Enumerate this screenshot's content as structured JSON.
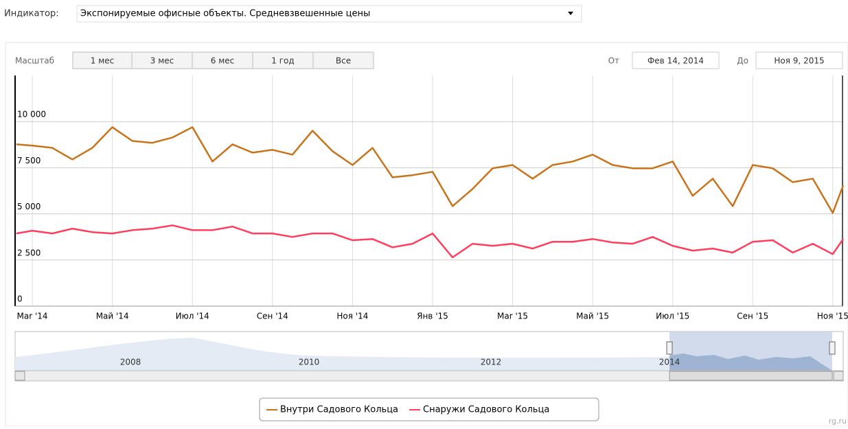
{
  "indicator": {
    "label": "Индикатор:",
    "value": "Экспонируемые офисные объекты. Средневзвешенные цены"
  },
  "range_selector": {
    "label": "Масштаб",
    "buttons": [
      "1 мес",
      "3 мес",
      "6 мес",
      "1 год",
      "Все"
    ],
    "from_label": "От",
    "from": "Фев 14, 2014",
    "to_label": "До",
    "to": "Ноя 9, 2015"
  },
  "navigator": {
    "labels": [
      "2008",
      "2010",
      "2012",
      "2014"
    ]
  },
  "watermark": "rg.ru",
  "chart_data": {
    "type": "line",
    "x": [
      -0.4,
      0,
      0.5,
      1,
      1.5,
      2,
      2.5,
      3,
      3.5,
      4,
      4.5,
      5,
      5.5,
      6,
      6.5,
      7,
      7.5,
      8,
      8.5,
      9,
      9.5,
      10,
      10.5,
      11,
      11.5,
      12,
      12.5,
      13,
      13.5,
      14,
      14.5,
      15,
      15.5,
      16,
      16.5,
      17,
      17.5,
      18,
      18.5,
      19,
      19.5,
      20,
      20.26
    ],
    "series": [
      {
        "name": "Внутри Садового Кольца",
        "color": "#c8731a",
        "values": [
          8770,
          8700,
          8580,
          7950,
          8580,
          9700,
          8950,
          8850,
          9140,
          9700,
          7840,
          8770,
          8320,
          8470,
          8210,
          9510,
          8400,
          7650,
          8580,
          6980,
          7100,
          7280,
          5420,
          6350,
          7470,
          7650,
          6910,
          7650,
          7840,
          8210,
          7650,
          7470,
          7470,
          7840,
          5980,
          6910,
          5420,
          7650,
          7470,
          6720,
          6910,
          5050,
          6540
        ]
      },
      {
        "name": "Снаружи Садового Кольца",
        "color": "#ff3d5c",
        "values": [
          3940,
          4090,
          3940,
          4200,
          4010,
          3940,
          4120,
          4200,
          4380,
          4120,
          4120,
          4310,
          3940,
          3940,
          3750,
          3940,
          3940,
          3570,
          3640,
          3190,
          3380,
          3940,
          2640,
          3380,
          3270,
          3380,
          3120,
          3490,
          3490,
          3640,
          3450,
          3380,
          3750,
          3270,
          3010,
          3120,
          2900,
          3490,
          3570,
          2900,
          3380,
          2820,
          3640
        ]
      }
    ],
    "xlim": [
      -0.43,
      20.26
    ],
    "xticks": [
      {
        "value": 0,
        "label": "Mar '14"
      },
      {
        "value": 2,
        "label": "Май '14"
      },
      {
        "value": 4,
        "label": "Июл '14"
      },
      {
        "value": 6,
        "label": "Сен '14"
      },
      {
        "value": 8,
        "label": "Ноя '14"
      },
      {
        "value": 10,
        "label": "Янв '15"
      },
      {
        "value": 12,
        "label": "Mar '15"
      },
      {
        "value": 14,
        "label": "Май '15"
      },
      {
        "value": 16,
        "label": "Июл '15"
      },
      {
        "value": 18,
        "label": "Сен '15"
      },
      {
        "value": 20,
        "label": "Ноя '15"
      }
    ],
    "ylim": [
      0,
      12500
    ],
    "yticks": [
      0,
      {
        "value": 2500,
        "label": "2 500"
      },
      {
        "value": 5000,
        "label": "5 000"
      },
      {
        "value": 7500,
        "label": "7 500"
      },
      {
        "value": 10000,
        "label": "10 000"
      }
    ],
    "grid": true
  }
}
